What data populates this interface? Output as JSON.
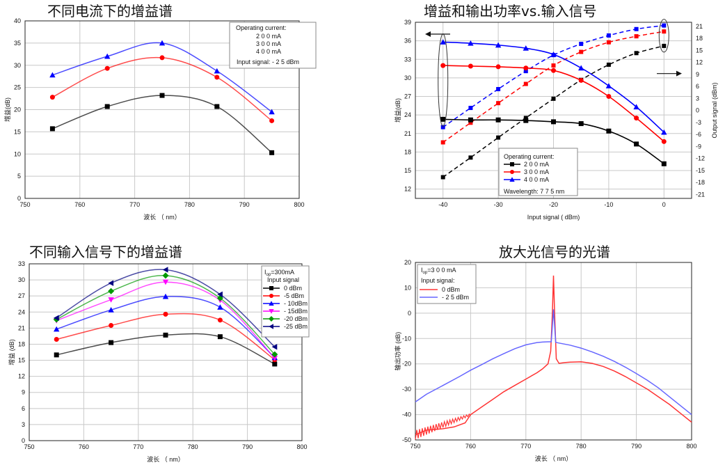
{
  "chart_data": [
    {
      "type": "line",
      "title": "不同电流下的增益谱",
      "xlabel": "波长 （ nm）",
      "ylabel": "增益(dB)",
      "xlim": [
        750,
        800
      ],
      "ylim": [
        0,
        40
      ],
      "xticks": [
        750,
        760,
        770,
        780,
        790,
        800
      ],
      "yticks": [
        0,
        5,
        10,
        15,
        20,
        25,
        30,
        35,
        40
      ],
      "x": [
        755,
        765,
        775,
        785,
        795
      ],
      "legend": {
        "title": "Operating   current:",
        "entries": [
          "2 0 0 mA",
          "3 0 0 mA",
          "4 0 0 mA"
        ],
        "note": "Input  signal:   - 2 5  dBm"
      },
      "series": [
        {
          "name": "200 mA",
          "color": "#000000",
          "marker": "square",
          "values": [
            15.7,
            20.7,
            23.2,
            20.7,
            10.3
          ]
        },
        {
          "name": "300 mA",
          "color": "#ff0000",
          "marker": "circle",
          "values": [
            22.8,
            29.3,
            31.7,
            27.3,
            17.5
          ]
        },
        {
          "name": "400 mA",
          "color": "#0000ff",
          "marker": "triangle",
          "values": [
            27.8,
            32.0,
            35.0,
            28.7,
            19.5
          ]
        }
      ]
    },
    {
      "type": "line",
      "title": "增益和输出功率vs.输入信号",
      "xlabel": "Input  signal  ( dBm)",
      "ylabel": "增益(dB)",
      "y2label": "Output signal (dBm)",
      "xlim": [
        -45,
        5
      ],
      "ylim": [
        10.5,
        39
      ],
      "y2lim": [
        -22,
        22
      ],
      "xticks": [
        -40,
        -30,
        -20,
        -10,
        0
      ],
      "yticks": [
        12,
        15,
        18,
        21,
        24,
        27,
        30,
        33,
        36,
        39
      ],
      "y2ticks": [
        -21,
        -18,
        -15,
        -12,
        -9,
        -6,
        -3,
        0,
        3,
        6,
        9,
        12,
        15,
        18,
        21
      ],
      "x": [
        -40,
        -35,
        -30,
        -25,
        -20,
        -15,
        -10,
        -5,
        0
      ],
      "legend": {
        "title": "Operating   current:",
        "entries": [
          "2 0 0 mA",
          "3 0 0 mA",
          "4 0 0 mA"
        ],
        "note": "Wavelength:    7 7 5  nm"
      },
      "gain_series": [
        {
          "name": "200 mA",
          "color": "#000000",
          "marker": "square",
          "values": [
            23.3,
            23.2,
            23.2,
            23.1,
            22.9,
            22.6,
            21.4,
            19.3,
            16.1
          ]
        },
        {
          "name": "300 mA",
          "color": "#ff0000",
          "marker": "circle",
          "values": [
            32.0,
            31.9,
            31.8,
            31.6,
            31.2,
            29.6,
            27.0,
            23.5,
            19.7
          ]
        },
        {
          "name": "400 mA",
          "color": "#0000ff",
          "marker": "triangle",
          "values": [
            35.8,
            35.6,
            35.3,
            34.8,
            33.8,
            31.6,
            28.7,
            25.3,
            21.2
          ]
        }
      ],
      "output_series": [
        {
          "name": "200 mA",
          "color": "#000000",
          "marker": "square",
          "values": [
            -16.7,
            -11.8,
            -6.8,
            -1.9,
            2.9,
            7.6,
            11.4,
            14.3,
            16.1
          ]
        },
        {
          "name": "300 mA",
          "color": "#ff0000",
          "marker": "square",
          "values": [
            -8.0,
            -3.1,
            1.8,
            6.6,
            11.2,
            14.6,
            17.0,
            18.5,
            19.7
          ]
        },
        {
          "name": "400 mA",
          "color": "#0000ff",
          "marker": "square",
          "values": [
            -4.2,
            0.6,
            5.3,
            9.8,
            13.8,
            16.6,
            18.7,
            20.3,
            21.2
          ]
        }
      ]
    },
    {
      "type": "line",
      "title": "不同输入信号下的增益谱",
      "xlabel": "波长 （ nm）",
      "ylabel": "增益 (dB)",
      "xlim": [
        750,
        800
      ],
      "ylim": [
        0,
        33
      ],
      "xticks": [
        750,
        760,
        770,
        780,
        790,
        800
      ],
      "yticks": [
        0,
        3,
        6,
        9,
        12,
        15,
        18,
        21,
        24,
        27,
        30,
        33
      ],
      "x": [
        755,
        765,
        775,
        785,
        795
      ],
      "legend": {
        "title_main": "I",
        "title_sub": "op",
        "title_rest": "=300mA",
        "subtitle": "Input  signal",
        "entries": [
          "0 dBm",
          "-5 dBm",
          "- 10dBm",
          "- 15dBm",
          "-20 dBm",
          "-25 dBm"
        ]
      },
      "series": [
        {
          "name": "0 dBm",
          "color": "#000000",
          "marker": "square",
          "values": [
            16.0,
            18.3,
            19.7,
            19.4,
            14.3
          ]
        },
        {
          "name": "-5 dBm",
          "color": "#ff0000",
          "marker": "circle",
          "values": [
            18.9,
            21.5,
            23.6,
            22.5,
            15.1
          ]
        },
        {
          "name": "-10 dBm",
          "color": "#0000ff",
          "marker": "triangle",
          "values": [
            20.8,
            24.4,
            26.9,
            24.9,
            15.5
          ]
        },
        {
          "name": "-15 dBm",
          "color": "#ff00ff",
          "marker": "triangle-down",
          "values": [
            22.4,
            26.3,
            29.6,
            26.2,
            15.4
          ]
        },
        {
          "name": "-20 dBm",
          "color": "#009900",
          "marker": "diamond",
          "values": [
            22.6,
            27.9,
            30.8,
            26.6,
            16.1
          ]
        },
        {
          "name": "-25 dBm",
          "color": "#000080",
          "marker": "triangle-left",
          "values": [
            22.9,
            29.4,
            31.9,
            27.3,
            17.5
          ]
        }
      ]
    },
    {
      "type": "line",
      "title": "放大光信号的光谱",
      "xlabel": "波长 （ nm）",
      "ylabel": "输出功率 (dB)",
      "xlim": [
        750,
        800
      ],
      "ylim": [
        -50,
        20
      ],
      "xticks": [
        750,
        760,
        770,
        780,
        790,
        800
      ],
      "yticks": [
        -50,
        -40,
        -30,
        -20,
        -10,
        0,
        10,
        20
      ],
      "legend": {
        "title_main": "I",
        "title_sub": "op",
        "title_rest": "=3 0 0 mA",
        "subtitle": "Input  signal:",
        "entries": [
          "0   dBm",
          "- 2 5  dBm"
        ]
      },
      "series": [
        {
          "name": "0 dBm",
          "color": "#ff3333",
          "x": [
            750,
            752,
            755,
            757,
            759,
            760,
            762,
            764,
            766,
            768,
            770,
            772,
            773,
            774,
            774.5,
            774.8,
            775,
            775.2,
            775.5,
            776,
            777,
            778,
            780,
            782,
            784,
            786,
            788,
            790,
            792,
            794,
            796,
            798,
            800
          ],
          "values": [
            -48,
            -47.5,
            -47,
            -45,
            -42,
            -40,
            -37,
            -34,
            -31,
            -28.5,
            -26,
            -23.5,
            -22,
            -20,
            -15,
            0,
            14.8,
            0,
            -18,
            -19.8,
            -19.5,
            -19.3,
            -19.2,
            -19.8,
            -21,
            -22.8,
            -25,
            -27.5,
            -30,
            -33,
            -36,
            -39.5,
            -43
          ]
        },
        {
          "name": "-25 dBm",
          "color": "#6666ff",
          "x": [
            750,
            752,
            755,
            758,
            760,
            762,
            764,
            766,
            768,
            770,
            772,
            773,
            774,
            774.6,
            774.8,
            775,
            775.2,
            775.4,
            776,
            778,
            780,
            782,
            784,
            786,
            788,
            790,
            792,
            794,
            796,
            798,
            800
          ],
          "values": [
            -35,
            -32,
            -28.5,
            -25,
            -22.5,
            -20.3,
            -18,
            -16,
            -14,
            -12.5,
            -11.6,
            -11.4,
            -11.3,
            -11.3,
            -5,
            1.5,
            -5,
            -11.5,
            -11.8,
            -12.6,
            -13.8,
            -15.3,
            -17,
            -19,
            -21.3,
            -23.8,
            -26.5,
            -29.5,
            -33,
            -36.5,
            -40
          ]
        }
      ]
    }
  ]
}
